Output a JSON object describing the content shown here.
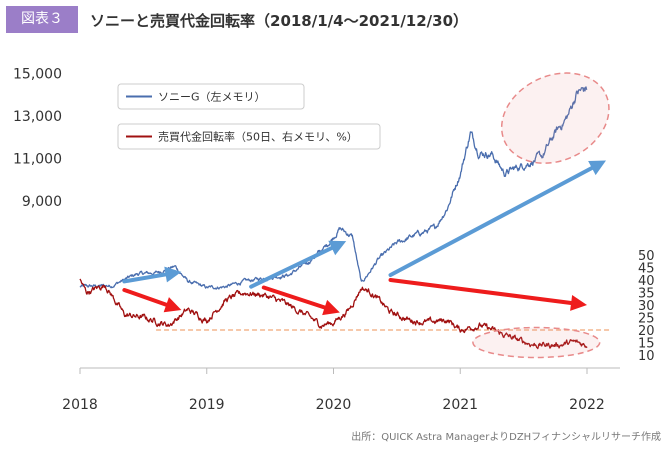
{
  "figure_label": "図表３",
  "title": "ソニーと売買代金回転率（2018/1/4～2021/12/30）",
  "source": "出所：QUICK Astra ManagerよりDZHフィナンシャルリサーチ作成",
  "colors": {
    "figure_label_bg": "#9b7ec8",
    "sony": "#4a6eae",
    "turnover": "#a01010",
    "blue_arrow": "#5b9bd5",
    "red_arrow": "#ee1c1c",
    "highlight": "#e88a8a",
    "dashed_line": "#f0a878"
  },
  "chart_data": {
    "type": "line",
    "x_ticks": [
      "2018",
      "2019",
      "2020",
      "2021",
      "2022"
    ],
    "y_left": {
      "ticks": [
        "9,000",
        "11,000",
        "13,000",
        "15,000"
      ],
      "range": [
        3000,
        15500
      ]
    },
    "y_right": {
      "ticks": [
        "10",
        "15",
        "20",
        "25",
        "30",
        "35",
        "40",
        "45",
        "50"
      ],
      "range": [
        10,
        50
      ]
    },
    "series": [
      {
        "name": "ソニーG（左メモリ）",
        "axis": "left",
        "points": [
          [
            2018.0,
            4950
          ],
          [
            2018.25,
            5000
          ],
          [
            2018.45,
            5550
          ],
          [
            2018.6,
            5600
          ],
          [
            2018.75,
            5900
          ],
          [
            2018.85,
            5200
          ],
          [
            2019.0,
            4900
          ],
          [
            2019.15,
            4950
          ],
          [
            2019.3,
            5200
          ],
          [
            2019.5,
            5400
          ],
          [
            2019.65,
            5500
          ],
          [
            2019.8,
            6100
          ],
          [
            2019.95,
            6900
          ],
          [
            2020.05,
            7700
          ],
          [
            2020.15,
            7300
          ],
          [
            2020.22,
            5100
          ],
          [
            2020.35,
            6200
          ],
          [
            2020.5,
            7000
          ],
          [
            2020.65,
            7400
          ],
          [
            2020.8,
            7700
          ],
          [
            2020.9,
            8700
          ],
          [
            2021.0,
            10300
          ],
          [
            2021.08,
            12200
          ],
          [
            2021.15,
            11300
          ],
          [
            2021.25,
            11200
          ],
          [
            2021.35,
            10300
          ],
          [
            2021.5,
            10700
          ],
          [
            2021.65,
            11100
          ],
          [
            2021.75,
            12200
          ],
          [
            2021.85,
            13000
          ],
          [
            2021.92,
            14100
          ],
          [
            2022.0,
            14300
          ]
        ]
      },
      {
        "name": "売買代金回転率（50日、右メモリ、%）",
        "axis": "right",
        "points": [
          [
            2018.0,
            40
          ],
          [
            2018.05,
            35
          ],
          [
            2018.2,
            38
          ],
          [
            2018.35,
            26
          ],
          [
            2018.5,
            25
          ],
          [
            2018.7,
            22
          ],
          [
            2018.85,
            28
          ],
          [
            2019.0,
            24
          ],
          [
            2019.15,
            32
          ],
          [
            2019.3,
            35
          ],
          [
            2019.45,
            34
          ],
          [
            2019.6,
            31
          ],
          [
            2019.75,
            27
          ],
          [
            2019.9,
            22
          ],
          [
            2020.0,
            23
          ],
          [
            2020.12,
            28
          ],
          [
            2020.22,
            37
          ],
          [
            2020.3,
            35
          ],
          [
            2020.45,
            27
          ],
          [
            2020.6,
            24
          ],
          [
            2020.75,
            23
          ],
          [
            2020.9,
            24
          ],
          [
            2021.0,
            20
          ],
          [
            2021.15,
            22
          ],
          [
            2021.3,
            19
          ],
          [
            2021.45,
            16
          ],
          [
            2021.6,
            14
          ],
          [
            2021.75,
            14
          ],
          [
            2021.9,
            15
          ],
          [
            2022.0,
            14
          ]
        ]
      }
    ],
    "reference_line": {
      "axis": "right",
      "value": 20
    },
    "trend_arrows": [
      {
        "color": "blue",
        "from": [
          2018.35,
          5200
        ],
        "to": [
          2018.8,
          5650
        ]
      },
      {
        "color": "blue",
        "from": [
          2019.35,
          4950
        ],
        "to": [
          2020.1,
          7100
        ]
      },
      {
        "color": "blue",
        "from": [
          2020.45,
          5500
        ],
        "to": [
          2022.15,
          10900
        ]
      },
      {
        "color": "red",
        "from": [
          2018.35,
          36
        ],
        "to": [
          2018.8,
          28
        ]
      },
      {
        "color": "red",
        "from": [
          2019.45,
          37
        ],
        "to": [
          2020.05,
          27
        ]
      },
      {
        "color": "red",
        "from": [
          2020.45,
          40
        ],
        "to": [
          2022.0,
          30
        ]
      }
    ],
    "highlight_ellipses": [
      {
        "cx": 2021.75,
        "cy": 12900,
        "rx": 0.44,
        "ry": 2000,
        "axis": "left",
        "rotate": -25
      },
      {
        "cx": 2021.6,
        "cy": 15,
        "rx": 0.5,
        "ry": 6,
        "axis": "right",
        "rotate": 0
      }
    ],
    "legend": {
      "placement": "top-left"
    },
    "grid": false
  }
}
